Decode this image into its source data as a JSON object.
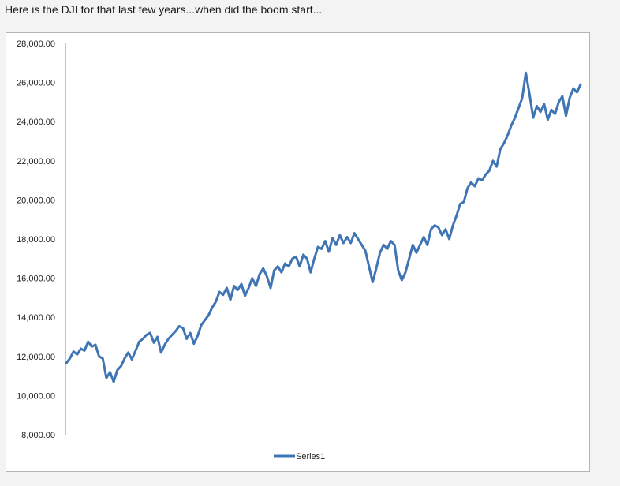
{
  "post": {
    "text": "Here is the DJI for that last few years...when did the boom start..."
  },
  "chart_data": {
    "type": "line",
    "title": "",
    "xlabel": "",
    "ylabel": "",
    "ylim": [
      8000,
      28000
    ],
    "y_ticks": [
      "8,000.00",
      "10,000.00",
      "12,000.00",
      "14,000.00",
      "16,000.00",
      "18,000.00",
      "20,000.00",
      "22,000.00",
      "24,000.00",
      "26,000.00",
      "28,000.00"
    ],
    "y_tick_values": [
      8000,
      10000,
      12000,
      14000,
      16000,
      18000,
      20000,
      22000,
      24000,
      26000,
      28000
    ],
    "grid": false,
    "legend_position": "bottom",
    "series": [
      {
        "name": "Series1",
        "color": "#3f74b5",
        "values": [
          11650,
          11900,
          12250,
          12100,
          12400,
          12300,
          12750,
          12500,
          12600,
          12000,
          11900,
          10900,
          11200,
          10700,
          11300,
          11500,
          11900,
          12200,
          11850,
          12300,
          12750,
          12900,
          13100,
          13200,
          12700,
          13000,
          12200,
          12600,
          12900,
          13100,
          13300,
          13550,
          13450,
          12900,
          13200,
          12650,
          13050,
          13600,
          13850,
          14100,
          14500,
          14800,
          15300,
          15150,
          15500,
          14900,
          15600,
          15400,
          15700,
          15100,
          15500,
          16000,
          15600,
          16200,
          16500,
          16100,
          15500,
          16400,
          16600,
          16300,
          16750,
          16600,
          17000,
          17100,
          16600,
          17200,
          17000,
          16300,
          17000,
          17600,
          17500,
          17900,
          17350,
          18050,
          17700,
          18200,
          17800,
          18100,
          17800,
          18300,
          18000,
          17700,
          17400,
          16600,
          15800,
          16500,
          17300,
          17700,
          17500,
          17900,
          17700,
          16400,
          15900,
          16300,
          17000,
          17700,
          17300,
          17700,
          18100,
          17700,
          18500,
          18700,
          18600,
          18200,
          18500,
          18000,
          18700,
          19200,
          19800,
          19900,
          20600,
          20900,
          20700,
          21100,
          21000,
          21300,
          21500,
          22000,
          21700,
          22600,
          22900,
          23300,
          23800,
          24200,
          24700,
          25200,
          26500,
          25400,
          24200,
          24800,
          24500,
          24900,
          24100,
          24600,
          24400,
          25000,
          25300,
          24300,
          25200,
          25700,
          25500,
          25900
        ]
      }
    ]
  }
}
